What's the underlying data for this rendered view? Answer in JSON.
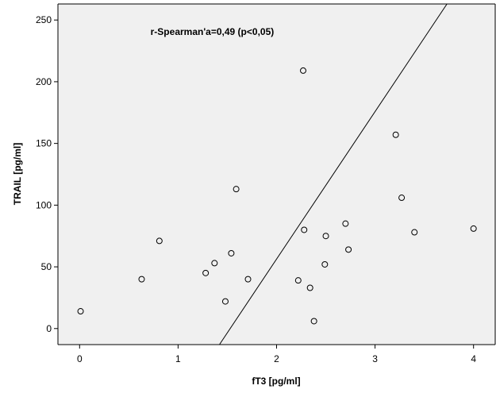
{
  "chart_data": {
    "type": "scatter",
    "title": "",
    "xlabel": "fT3 [pg/ml]",
    "ylabel": "TRAIL [pg/ml]",
    "xlim": [
      -0.22,
      4.22
    ],
    "ylim": [
      -13,
      263
    ],
    "xticks": [
      0,
      1,
      2,
      3,
      4
    ],
    "yticks": [
      0,
      50,
      100,
      150,
      200,
      250
    ],
    "xtick_labels": [
      "0",
      "1",
      "2",
      "3",
      "4"
    ],
    "ytick_labels": [
      "0",
      "50",
      "100",
      "150",
      "200",
      "250"
    ],
    "grid": false,
    "legend": "none",
    "colors": {
      "plot_background": "#f0f0f0",
      "marker_edge": "#000000",
      "line": "#000000"
    },
    "points": [
      {
        "x": 0.01,
        "y": 14
      },
      {
        "x": 0.63,
        "y": 40
      },
      {
        "x": 0.81,
        "y": 71
      },
      {
        "x": 1.28,
        "y": 45
      },
      {
        "x": 1.37,
        "y": 53
      },
      {
        "x": 1.48,
        "y": 22
      },
      {
        "x": 1.54,
        "y": 61
      },
      {
        "x": 1.59,
        "y": 113
      },
      {
        "x": 1.71,
        "y": 40
      },
      {
        "x": 2.22,
        "y": 39
      },
      {
        "x": 2.27,
        "y": 209
      },
      {
        "x": 2.28,
        "y": 80
      },
      {
        "x": 2.34,
        "y": 33
      },
      {
        "x": 2.38,
        "y": 6
      },
      {
        "x": 2.49,
        "y": 52
      },
      {
        "x": 2.5,
        "y": 75
      },
      {
        "x": 2.7,
        "y": 85
      },
      {
        "x": 2.73,
        "y": 64
      },
      {
        "x": 3.21,
        "y": 157
      },
      {
        "x": 3.27,
        "y": 106
      },
      {
        "x": 3.4,
        "y": 78
      },
      {
        "x": 4.0,
        "y": 81
      }
    ],
    "fit_line": {
      "x1": 1.42,
      "y1": -13,
      "x2": 3.73,
      "y2": 263
    },
    "annotations": [
      {
        "text": "r-Spearman'a=0,49 (p<0,05)",
        "x": 0.72,
        "y": 238
      }
    ]
  }
}
